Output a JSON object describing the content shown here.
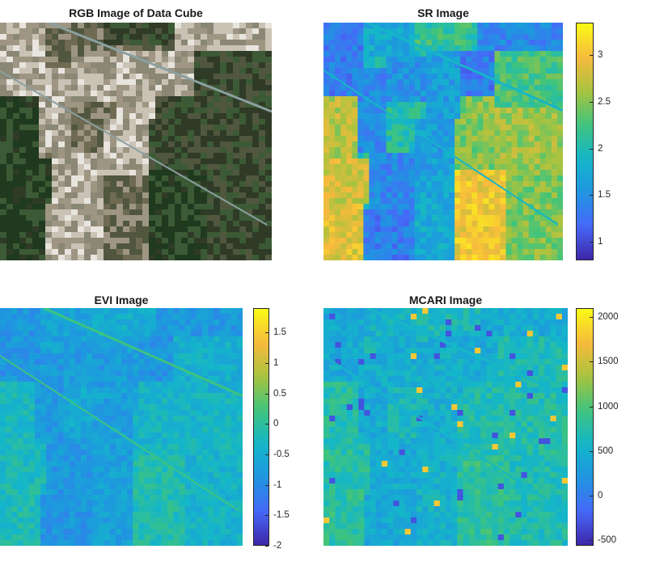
{
  "chart_data": [
    {
      "type": "heatmap",
      "title": "RGB Image of Data Cube",
      "colorbar": false,
      "content": "true-color satellite image of agricultural fields"
    },
    {
      "type": "heatmap",
      "title": "SR Image",
      "colormap": "parula",
      "clim": [
        0.8,
        3.35
      ],
      "colorbar_ticks": [
        "1",
        "1.5",
        "2",
        "2.5",
        "3"
      ],
      "colorbar_tick_values": [
        1,
        1.5,
        2,
        2.5,
        3
      ]
    },
    {
      "type": "heatmap",
      "title": "EVI Image",
      "colormap": "parula",
      "clim": [
        -2.0,
        1.9
      ],
      "colorbar_ticks": [
        "1.5",
        "1",
        "0.5",
        "0",
        "-0.5",
        "-1",
        "-1.5",
        "-2"
      ],
      "colorbar_tick_values": [
        1.5,
        1,
        0.5,
        0,
        -0.5,
        -1,
        -1.5,
        -2
      ]
    },
    {
      "type": "heatmap",
      "title": "MCARI Image",
      "colormap": "parula",
      "clim": [
        -560,
        2100
      ],
      "colorbar_ticks": [
        "2000",
        "1500",
        "1000",
        "500",
        "0",
        "-500"
      ],
      "colorbar_tick_values": [
        2000,
        1500,
        1000,
        500,
        0,
        -500
      ]
    }
  ],
  "colormap_stops": [
    "#3e26a8",
    "#4669f8",
    "#1f96e0",
    "#14b6c9",
    "#3fc47c",
    "#a9c33e",
    "#f8ba3d",
    "#f9fb15"
  ],
  "rgb_palette": [
    "#2f3b26",
    "#51573f",
    "#8a8775",
    "#c9c2b5",
    "#e8e4de",
    "#3b5a35",
    "#1f3a1e",
    "#6f6a52",
    "#9e9683"
  ]
}
